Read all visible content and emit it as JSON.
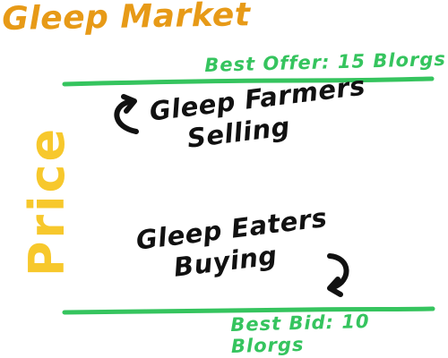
{
  "diagram": {
    "title": "Gleep Market",
    "axis_label": "Price",
    "best_offer": "Best Offer: 15 Blorgs",
    "best_bid": "Best Bid: 10 Blorgs",
    "sellers": {
      "line1": "Gleep Farmers",
      "line2": "Selling"
    },
    "buyers": {
      "line1": "Gleep Eaters",
      "line2": "Buying"
    }
  },
  "colors": {
    "title": "#E79A17",
    "axis_label": "#F7C82C",
    "price_lines": "#35C45E",
    "ink": "#111111"
  },
  "icons": {
    "sellers_arrow": "curved-arrow-up-icon",
    "buyers_arrow": "curved-arrow-down-icon"
  }
}
